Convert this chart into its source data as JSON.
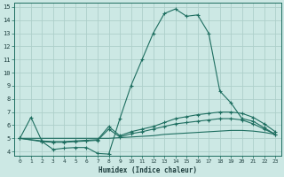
{
  "bg_color": "#cce8e4",
  "grid_color": "#aecfca",
  "line_color": "#1e6e60",
  "xlabel": "Humidex (Indice chaleur)",
  "xlim": [
    -0.5,
    23.5
  ],
  "ylim": [
    3.7,
    15.3
  ],
  "yticks": [
    4,
    5,
    6,
    7,
    8,
    9,
    10,
    11,
    12,
    13,
    14,
    15
  ],
  "xticks": [
    0,
    1,
    2,
    3,
    4,
    5,
    6,
    7,
    8,
    9,
    10,
    11,
    12,
    13,
    14,
    15,
    16,
    17,
    18,
    19,
    20,
    21,
    22,
    23
  ],
  "line1_x": [
    0,
    1,
    2,
    3,
    4,
    5,
    6,
    7,
    8,
    9,
    10,
    11,
    12,
    13,
    14,
    15,
    16,
    17,
    18,
    19,
    20,
    21,
    22,
    23
  ],
  "line1_y": [
    5.0,
    6.6,
    4.75,
    4.15,
    4.25,
    4.3,
    4.3,
    3.85,
    3.8,
    6.5,
    9.0,
    11.0,
    13.0,
    14.5,
    14.85,
    14.3,
    14.4,
    13.0,
    8.6,
    7.7,
    6.5,
    6.3,
    5.8,
    5.3
  ],
  "line2_x": [
    0,
    2,
    3,
    4,
    5,
    6,
    7,
    8,
    9,
    10,
    11,
    12,
    13,
    14,
    15,
    16,
    17,
    18,
    19,
    20,
    21,
    22,
    23
  ],
  "line2_y": [
    5.0,
    4.8,
    4.75,
    4.75,
    4.8,
    4.85,
    4.9,
    5.9,
    5.2,
    5.5,
    5.7,
    5.9,
    6.2,
    6.5,
    6.65,
    6.8,
    6.9,
    7.0,
    7.0,
    6.9,
    6.6,
    6.1,
    5.5
  ],
  "line3_x": [
    0,
    2,
    3,
    4,
    5,
    6,
    7,
    8,
    9,
    10,
    11,
    12,
    13,
    14,
    15,
    16,
    17,
    18,
    19,
    20,
    21,
    22,
    23
  ],
  "line3_y": [
    5.0,
    4.75,
    4.7,
    4.7,
    4.75,
    4.8,
    4.85,
    5.7,
    5.1,
    5.35,
    5.5,
    5.7,
    5.9,
    6.1,
    6.2,
    6.3,
    6.4,
    6.5,
    6.5,
    6.4,
    6.1,
    5.7,
    5.3
  ],
  "line4_x": [
    0,
    1,
    2,
    3,
    4,
    5,
    6,
    7,
    8,
    9,
    10,
    11,
    12,
    13,
    14,
    15,
    16,
    17,
    18,
    19,
    20,
    21,
    22,
    23
  ],
  "line4_y": [
    5.0,
    5.0,
    5.0,
    5.0,
    5.0,
    5.0,
    5.0,
    5.0,
    5.0,
    5.05,
    5.1,
    5.15,
    5.2,
    5.3,
    5.35,
    5.4,
    5.45,
    5.5,
    5.55,
    5.6,
    5.6,
    5.55,
    5.45,
    5.3
  ]
}
